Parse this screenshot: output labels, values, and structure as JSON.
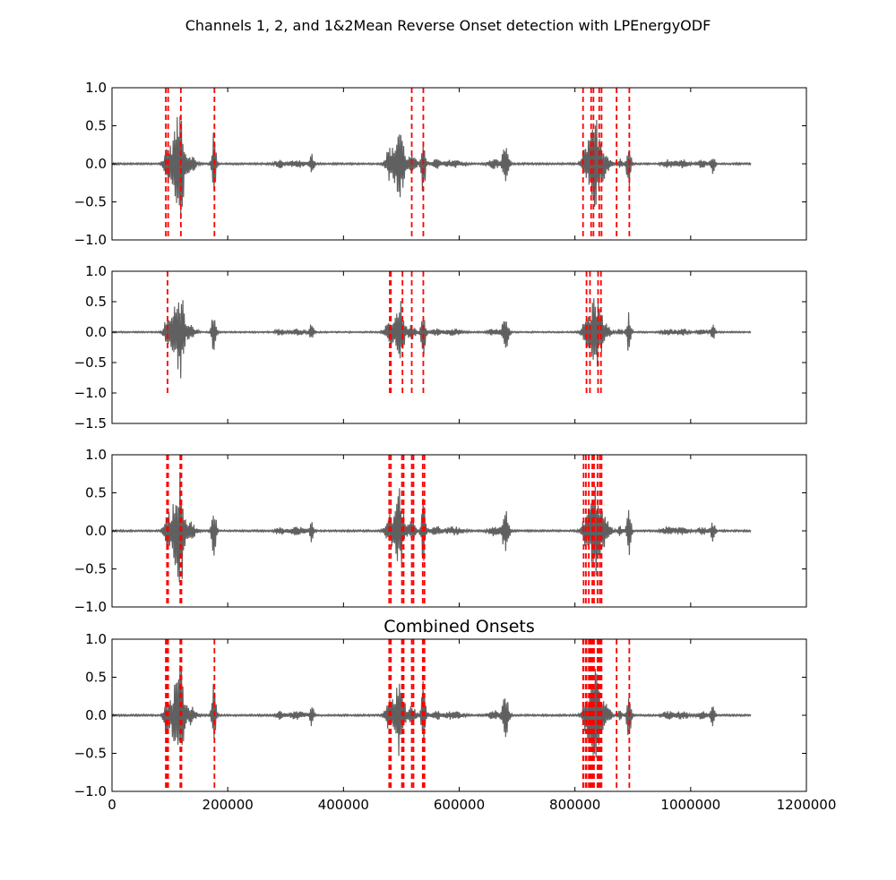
{
  "figure": {
    "title": "Channels 1, 2, and 1&2Mean Reverse Onset detection with LPEnergyODF"
  },
  "chart_data": [
    {
      "type": "line",
      "title": "",
      "xlabel": "",
      "ylabel": "",
      "xlim": [
        0,
        1200000
      ],
      "ylim": [
        -1.0,
        1.0
      ],
      "yticks": [
        "1.0",
        "0.5",
        "0.0",
        "−0.5",
        "−1.0"
      ],
      "ytick_values": [
        1.0,
        0.5,
        0.0,
        -0.5,
        -1.0
      ],
      "show_xticklabels": false,
      "series": [
        {
          "color": "#606060"
        }
      ],
      "onsets": {
        "color": "#ff0000",
        "style": "dashed",
        "y_range": [
          -1.0,
          1.0
        ],
        "x": [
          93000,
          97000,
          119000,
          177000,
          518000,
          538000,
          814000,
          828000,
          832000,
          842000,
          846000,
          872000,
          894000
        ]
      }
    },
    {
      "type": "line",
      "title": "",
      "xlabel": "",
      "ylabel": "",
      "xlim": [
        0,
        1200000
      ],
      "ylim": [
        -1.5,
        1.0
      ],
      "yticks": [
        "1.0",
        "0.5",
        "0.0",
        "−0.5",
        "−1.0",
        "−1.5"
      ],
      "ytick_values": [
        1.0,
        0.5,
        0.0,
        -0.5,
        -1.0,
        -1.5
      ],
      "show_xticklabels": false,
      "series": [
        {
          "color": "#606060"
        }
      ],
      "onsets": {
        "color": "#ff0000",
        "style": "dashed",
        "y_range": [
          -1.0,
          1.0
        ],
        "x": [
          96000,
          480000,
          482000,
          502000,
          518000,
          538000,
          820000,
          826000,
          840000,
          845000
        ]
      }
    },
    {
      "type": "line",
      "title": "",
      "xlabel": "",
      "ylabel": "",
      "xlim": [
        0,
        1200000
      ],
      "ylim": [
        -1.0,
        1.0
      ],
      "yticks": [
        "1.0",
        "0.5",
        "0.0",
        "−0.5",
        "−1.0"
      ],
      "ytick_values": [
        1.0,
        0.5,
        0.0,
        -0.5,
        -1.0
      ],
      "show_xticklabels": false,
      "series": [
        {
          "color": "#606060"
        }
      ],
      "onsets": {
        "color": "#ff0000",
        "style": "dashed",
        "y_range": [
          -1.0,
          1.0
        ],
        "x": [
          95000,
          97000,
          118000,
          120000,
          479000,
          482000,
          501000,
          504000,
          518000,
          521000,
          537000,
          540000,
          815000,
          819000,
          824000,
          830000,
          833000,
          839000,
          843000,
          846000
        ]
      }
    },
    {
      "type": "line",
      "title": "Combined Onsets",
      "xlabel": "",
      "ylabel": "",
      "xlim": [
        0,
        1200000
      ],
      "ylim": [
        -1.0,
        1.0
      ],
      "yticks": [
        "1.0",
        "0.5",
        "0.0",
        "−0.5",
        "−1.0"
      ],
      "ytick_values": [
        1.0,
        0.5,
        0.0,
        -0.5,
        -1.0
      ],
      "xticks": [
        "0",
        "200000",
        "400000",
        "600000",
        "800000",
        "1000000",
        "1200000"
      ],
      "xtick_values": [
        0,
        200000,
        400000,
        600000,
        800000,
        1000000,
        1200000
      ],
      "show_xticklabels": true,
      "series": [
        {
          "color": "#606060"
        }
      ],
      "onsets": {
        "color": "#ff0000",
        "style": "dashed",
        "y_range": [
          -1.0,
          1.0
        ],
        "x": [
          93000,
          95000,
          96000,
          97000,
          118000,
          119000,
          120000,
          177000,
          479000,
          480000,
          482000,
          501000,
          502000,
          504000,
          518000,
          521000,
          537000,
          538000,
          540000,
          814000,
          815000,
          819000,
          820000,
          824000,
          826000,
          828000,
          830000,
          832000,
          833000,
          839000,
          840000,
          842000,
          843000,
          845000,
          846000,
          872000,
          894000
        ]
      }
    }
  ]
}
